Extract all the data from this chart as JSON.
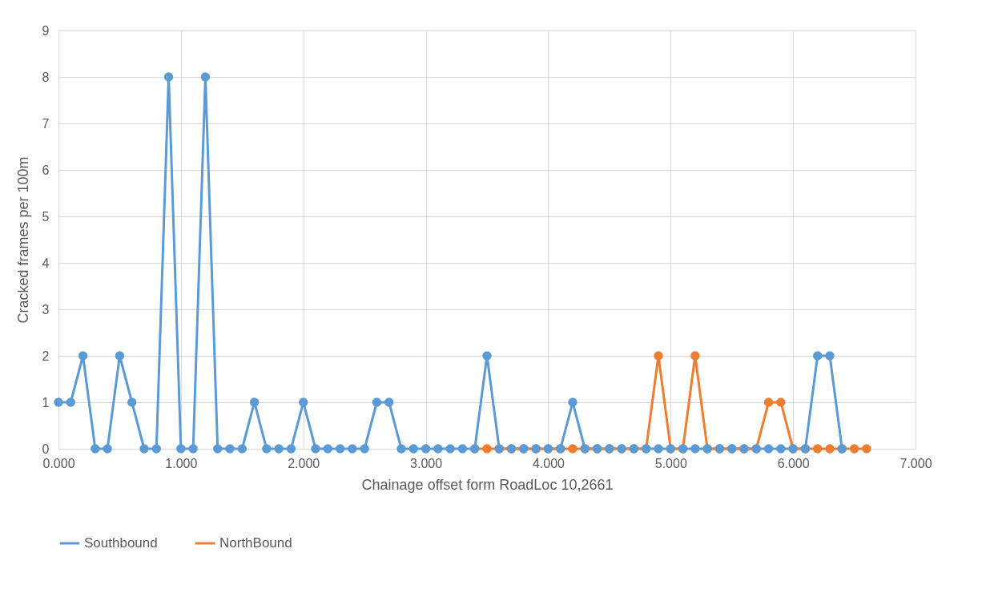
{
  "chart_data": {
    "type": "line",
    "xlabel": "Chainage offset form RoadLoc 10,2661",
    "ylabel": "Cracked frames per 100m",
    "series": [
      {
        "name": "Southbound",
        "color": "#5b9bd5",
        "x": [
          0,
          0.1,
          0.2,
          0.3,
          0.4,
          0.5,
          0.6,
          0.7,
          0.8,
          0.9,
          1.0,
          1.1,
          1.2,
          1.3,
          1.4,
          1.5,
          1.6,
          1.7,
          1.8,
          1.9,
          2.0,
          2.1,
          2.2,
          2.3,
          2.4,
          2.5,
          2.6,
          2.7,
          2.8,
          2.9,
          3.0,
          3.1,
          3.2,
          3.3,
          3.4,
          3.5,
          3.6,
          3.7,
          3.8,
          3.9,
          4.0,
          4.1,
          4.2,
          4.3,
          4.4,
          4.5,
          4.6,
          4.7,
          4.8,
          4.9,
          5.0,
          5.1,
          5.2,
          5.3,
          5.4,
          5.5,
          5.6,
          5.7,
          5.8,
          5.9,
          6.0,
          6.1,
          6.2,
          6.3,
          6.4
        ],
        "values": [
          1,
          1,
          2,
          0,
          0,
          2,
          1,
          0,
          0,
          8,
          0,
          0,
          8,
          0,
          0,
          0,
          1,
          0,
          0,
          0,
          1,
          0,
          0,
          0,
          0,
          0,
          1,
          1,
          0,
          0,
          0,
          0,
          0,
          0,
          0,
          2,
          0,
          0,
          0,
          0,
          0,
          0,
          1,
          0,
          0,
          0,
          0,
          0,
          0,
          0,
          0,
          0,
          0,
          0,
          0,
          0,
          0,
          0,
          0,
          0,
          0,
          0,
          2,
          2,
          0
        ]
      },
      {
        "name": "NorthBound",
        "color": "#ed7d31",
        "x": [
          3.4,
          3.5,
          3.6,
          3.7,
          3.8,
          3.9,
          4.0,
          4.1,
          4.2,
          4.3,
          4.4,
          4.5,
          4.6,
          4.7,
          4.8,
          4.9,
          5.0,
          5.1,
          5.2,
          5.3,
          5.4,
          5.5,
          5.6,
          5.7,
          5.8,
          5.9,
          6.0,
          6.1,
          6.2,
          6.3,
          6.4,
          6.5,
          6.6
        ],
        "values": [
          0,
          0,
          0,
          0,
          0,
          0,
          0,
          0,
          0,
          0,
          0,
          0,
          0,
          0,
          0,
          2,
          0,
          0,
          2,
          0,
          0,
          0,
          0,
          0,
          1,
          1,
          0,
          0,
          0,
          0,
          0,
          0,
          0
        ]
      }
    ],
    "xlim": [
      0,
      7
    ],
    "xticks": [
      {
        "value": 0,
        "label": "0.000"
      },
      {
        "value": 1,
        "label": "1.000"
      },
      {
        "value": 2,
        "label": "2.000"
      },
      {
        "value": 3,
        "label": "3.000"
      },
      {
        "value": 4,
        "label": "4.000"
      },
      {
        "value": 5,
        "label": "5.000"
      },
      {
        "value": 6,
        "label": "6.000"
      },
      {
        "value": 7,
        "label": "7.000"
      }
    ],
    "ylim": [
      0,
      9
    ],
    "yticks": [
      0,
      1,
      2,
      3,
      4,
      5,
      6,
      7,
      8,
      9
    ],
    "grid": true,
    "legend": "bottom",
    "marker": "circle",
    "line_style": "solid"
  }
}
